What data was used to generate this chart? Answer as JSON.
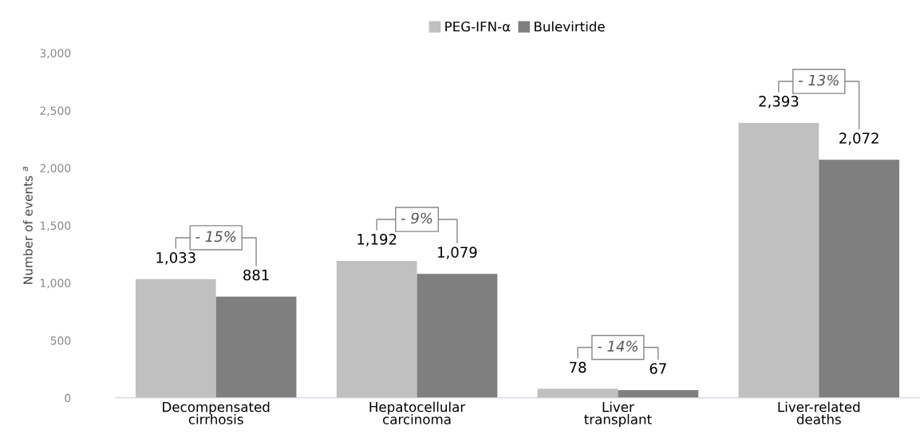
{
  "chart_data": {
    "type": "bar",
    "ylabel": "Number of events $^{a}$",
    "categories": [
      "Decompensated\ncirrhosis",
      "Hepatocellular\ncarcinoma",
      "Liver\ntransplant",
      "Liver-related\ndeaths"
    ],
    "series": [
      {
        "name": "PEG-IFN-α",
        "color": "#c0c0c0",
        "values": [
          1033,
          1192,
          78,
          2393
        ],
        "value_labels": [
          "1,033",
          "1,192",
          "78",
          "2,393"
        ]
      },
      {
        "name": "Bulevirtide",
        "color": "#7f7f7f",
        "values": [
          881,
          1079,
          67,
          2072
        ],
        "value_labels": [
          "881",
          "1,079",
          "67",
          "2,072"
        ]
      }
    ],
    "ylim": [
      0,
      3000
    ],
    "yticks": [
      {
        "value": 0,
        "label": "0"
      },
      {
        "value": 500,
        "label": "500"
      },
      {
        "value": 1000,
        "label": "1,000"
      },
      {
        "value": 1500,
        "label": "1,500"
      },
      {
        "value": 2000,
        "label": "2,000"
      },
      {
        "value": 2500,
        "label": "2,500"
      },
      {
        "value": 3000,
        "label": "3,000"
      }
    ],
    "annotations": [
      "- 15%",
      "- 9%",
      "- 14%",
      "- 13%"
    ],
    "grid": false,
    "legend": "top"
  }
}
